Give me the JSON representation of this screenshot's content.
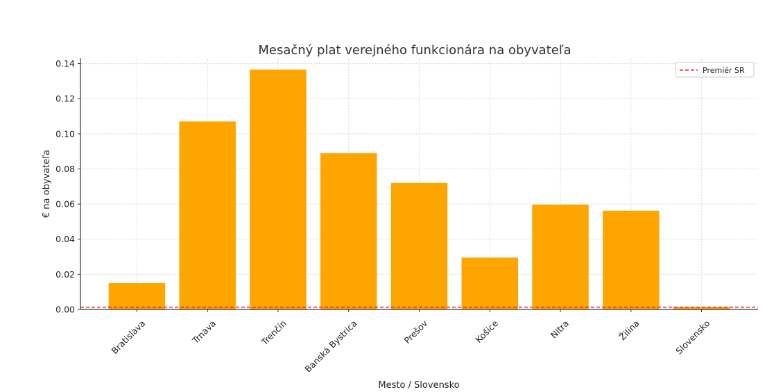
{
  "chart_data": {
    "type": "bar",
    "title": "Mesačný plat verejného funkcionára na obyvateľa",
    "xlabel": "Mesto / Slovensko",
    "ylabel": "€ na obyvateľa",
    "categories": [
      "Bratislava",
      "Trnava",
      "Trenčín",
      "Banská Bystrica",
      "Prešov",
      "Košice",
      "Nitra",
      "Žilina",
      "Slovensko"
    ],
    "values": [
      0.015,
      0.107,
      0.1365,
      0.089,
      0.072,
      0.0295,
      0.0597,
      0.0562,
      0.0013
    ],
    "ylim": [
      0,
      0.143
    ],
    "yticks": [
      0.0,
      0.02,
      0.04,
      0.06,
      0.08,
      0.1,
      0.12,
      0.14
    ],
    "ytick_labels": [
      "0.00",
      "0.02",
      "0.04",
      "0.06",
      "0.08",
      "0.10",
      "0.12",
      "0.14"
    ],
    "grid": true,
    "bar_color": "#FFA500",
    "reference_line": {
      "label": "Premiér SR",
      "value": 0.0013,
      "color": "#E8262A",
      "style": "dashed"
    },
    "legend": {
      "placement": "top-right",
      "entries": [
        "Premiér SR"
      ]
    }
  }
}
